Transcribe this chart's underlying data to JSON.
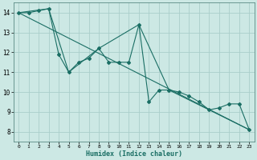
{
  "bg_color": "#cce8e4",
  "grid_color_major": "#aaceca",
  "grid_color_minor": "#bbdeda",
  "line_color": "#1a6e64",
  "xlabel": "Humidex (Indice chaleur)",
  "ylim": [
    7.5,
    14.5
  ],
  "xlim": [
    -0.5,
    23.5
  ],
  "yticks": [
    8,
    9,
    10,
    11,
    12,
    13,
    14
  ],
  "xtick_labels": [
    "0",
    "1",
    "2",
    "3",
    "4",
    "5",
    "6",
    "7",
    "8",
    "9",
    "10",
    "11",
    "12",
    "13",
    "14",
    "15",
    "16",
    "17",
    "18",
    "19",
    "20",
    "21",
    "22",
    "23"
  ],
  "xtick_positions": [
    0,
    1,
    2,
    3,
    4,
    5,
    6,
    7,
    8,
    9,
    10,
    11,
    12,
    13,
    14,
    15,
    16,
    17,
    18,
    19,
    20,
    21,
    22,
    23
  ],
  "series1_x": [
    0,
    1,
    2,
    3,
    4,
    5,
    6,
    7,
    8,
    9,
    10,
    11,
    12,
    13,
    14,
    15,
    16,
    17,
    18,
    19,
    20,
    21,
    22,
    23
  ],
  "series1_y": [
    14.0,
    14.0,
    14.1,
    14.2,
    11.9,
    11.0,
    11.5,
    11.7,
    12.2,
    11.5,
    11.5,
    11.5,
    13.4,
    9.5,
    10.1,
    10.1,
    10.0,
    9.8,
    9.5,
    9.1,
    9.2,
    9.4,
    9.4,
    8.1
  ],
  "series2_x": [
    0,
    3,
    5,
    8,
    12,
    15,
    19,
    23
  ],
  "series2_y": [
    14.0,
    14.2,
    11.0,
    12.2,
    13.4,
    10.1,
    9.1,
    8.1
  ],
  "series3_x": [
    0,
    23
  ],
  "series3_y": [
    14.0,
    8.1
  ]
}
